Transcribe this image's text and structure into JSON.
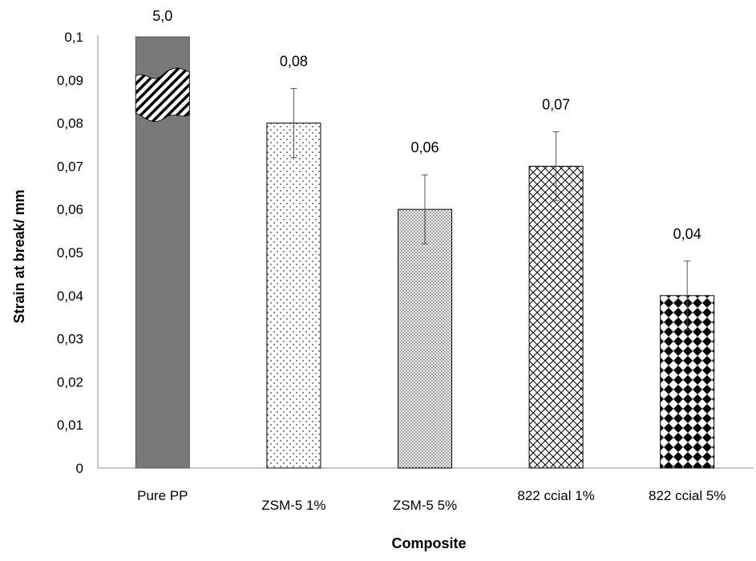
{
  "chart_data": {
    "type": "bar",
    "title": "",
    "xlabel": "Composite",
    "ylabel": "Strain at break/ mm",
    "ylim": [
      0,
      0.1
    ],
    "y_ticks": [
      "0",
      "0,01",
      "0,02",
      "0,03",
      "0,04",
      "0,05",
      "0,06",
      "0,07",
      "0,08",
      "0,09",
      "0,1"
    ],
    "grid": false,
    "legend": "none",
    "categories": [
      "Pure PP",
      "ZSM-5 1%",
      "ZSM-5 5%",
      "822 ccial 1%",
      "822 ccial 5%"
    ],
    "values": [
      5.0,
      0.08,
      0.06,
      0.07,
      0.04
    ],
    "error_bars": [
      null,
      0.008,
      0.008,
      0.008,
      0.008
    ],
    "data_labels": [
      "5,0",
      "0,08",
      "0,06",
      "0,07",
      "0,04"
    ],
    "axis_break": [
      true,
      false,
      false,
      false,
      false
    ],
    "bar_fills": [
      "solid-gray",
      "fine-dots",
      "dense-dots",
      "crosshatch",
      "checkerboard"
    ],
    "colors": {
      "solid_gray": "#7a7878",
      "pattern_ink": "#000000",
      "axis": "#8c8c8c",
      "text": "#000000"
    }
  }
}
